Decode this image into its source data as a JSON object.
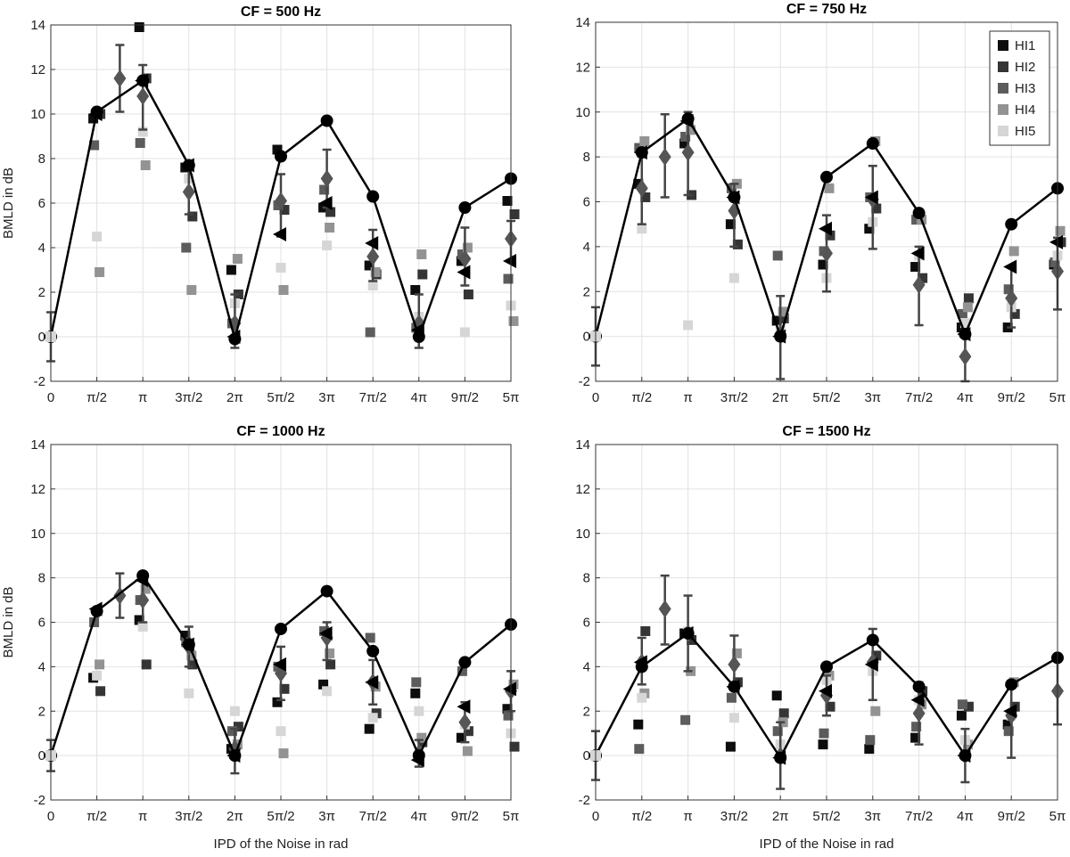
{
  "chart_data": {
    "type": "scatter",
    "xlabel": "IPD of the Noise in rad",
    "ylabel": "BMLD in dB",
    "ylim": [
      -2,
      14
    ],
    "yticks": [
      "-2",
      "0",
      "2",
      "4",
      "6",
      "8",
      "10",
      "12",
      "14"
    ],
    "x_tick_labels": [
      "0",
      "π/2",
      "π",
      "3π/2",
      "2π",
      "5π/2",
      "3π",
      "7π/2",
      "4π",
      "9π/2",
      "5π"
    ],
    "grid": true,
    "legend": {
      "location": "top-right of CF = 750 Hz panel",
      "entries": [
        {
          "name": "HI1",
          "color": "#0d0d0d"
        },
        {
          "name": "HI2",
          "color": "#353535"
        },
        {
          "name": "HI3",
          "color": "#5c5c5c"
        },
        {
          "name": "HI4",
          "color": "#939393"
        },
        {
          "name": "HI5",
          "color": "#d6d6d6"
        }
      ]
    },
    "panels": [
      {
        "title": "CF = 500 Hz",
        "line": [
          0,
          10.1,
          11.5,
          7.7,
          -0.1,
          8.1,
          9.7,
          6.3,
          0,
          5.8,
          7.1
        ],
        "subjects": [
          [
            null,
            9.8,
            13.9,
            7.6,
            3.0,
            8.4,
            5.8,
            3.2,
            2.1,
            3.4,
            6.1
          ],
          [
            null,
            10.0,
            11.6,
            5.4,
            1.9,
            5.7,
            5.6,
            2.8,
            2.8,
            1.9,
            5.5
          ],
          [
            null,
            8.6,
            8.7,
            4.0,
            0.6,
            5.9,
            6.6,
            0.2,
            0.4,
            3.7,
            2.6
          ],
          [
            null,
            2.9,
            7.7,
            2.1,
            3.5,
            2.1,
            4.9,
            2.9,
            3.7,
            4.0,
            0.7
          ],
          [
            null,
            4.5,
            9.2,
            7.1,
            1.5,
            3.1,
            4.1,
            2.3,
            0.9,
            0.2,
            1.4
          ]
        ],
        "triangles": [
          null,
          10.0,
          11.5,
          7.7,
          0,
          4.6,
          6.0,
          4.2,
          0.3,
          2.9,
          3.4
        ],
        "diamonds": [
          {
            "x": 1.5,
            "y": 11.6,
            "lo": 10.1,
            "hi": 13.1
          },
          {
            "x": 2,
            "y": 10.8,
            "lo": 9.3,
            "hi": 12.2
          },
          {
            "x": 3,
            "y": 6.5,
            "lo": 5.5,
            "hi": 7.6
          },
          {
            "x": 4,
            "y": 0.6,
            "lo": -0.5,
            "hi": 1.9
          },
          {
            "x": 5,
            "y": 6.1,
            "lo": 4.5,
            "hi": 7.3
          },
          {
            "x": 6,
            "y": 7.1,
            "lo": 5.8,
            "hi": 8.4
          },
          {
            "x": 7,
            "y": 3.6,
            "lo": 2.5,
            "hi": 4.8
          },
          {
            "x": 8,
            "y": 0.6,
            "lo": -0.5,
            "hi": 1.9
          },
          {
            "x": 9,
            "y": 3.5,
            "lo": 2.3,
            "hi": 4.9
          },
          {
            "x": 10,
            "y": 4.4,
            "lo": 3.4,
            "hi": 5.2
          }
        ],
        "origin_bar": [
          -1.1,
          1.1
        ]
      },
      {
        "title": "CF = 750 Hz",
        "line": [
          0,
          8.2,
          9.7,
          6.2,
          0,
          7.1,
          8.6,
          5.5,
          0.1,
          5.0,
          6.6
        ],
        "subjects": [
          [
            null,
            6.8,
            8.6,
            5.0,
            0.7,
            3.2,
            4.8,
            3.1,
            0.4,
            0.4,
            3.2
          ],
          [
            null,
            6.2,
            6.3,
            4.1,
            0.8,
            4.5,
            5.7,
            2.6,
            1.7,
            1.0,
            4.2
          ],
          [
            null,
            8.4,
            8.9,
            6.6,
            3.6,
            3.8,
            6.2,
            5.2,
            1.0,
            2.1,
            3.3
          ],
          [
            null,
            8.7,
            9.2,
            6.8,
            1.1,
            6.6,
            8.7,
            5.2,
            1.3,
            3.8,
            4.7
          ],
          [
            null,
            4.8,
            0.5,
            2.6,
            0.3,
            2.6,
            5.1,
            3.6,
            0.6,
            1.3,
            3.6
          ]
        ],
        "triangles": [
          null,
          8.2,
          9.6,
          6.2,
          0,
          4.8,
          6.2,
          3.7,
          0.1,
          3.1,
          4.2
        ],
        "diamonds": [
          {
            "x": 1,
            "y": 6.6,
            "lo": 5.0,
            "hi": 8.0
          },
          {
            "x": 1.5,
            "y": 8.0,
            "lo": 6.2,
            "hi": 9.9
          },
          {
            "x": 2,
            "y": 8.2,
            "lo": 6.3,
            "hi": 10.0
          },
          {
            "x": 3,
            "y": 5.6,
            "lo": 4.0,
            "hi": 6.8
          },
          {
            "x": 4,
            "y": 0.1,
            "lo": -1.9,
            "hi": 1.8
          },
          {
            "x": 5,
            "y": 3.7,
            "lo": 2.0,
            "hi": 5.4
          },
          {
            "x": 6,
            "y": 6.1,
            "lo": 3.9,
            "hi": 7.6
          },
          {
            "x": 7,
            "y": 2.3,
            "lo": 0.5,
            "hi": 4.0
          },
          {
            "x": 8,
            "y": -0.9,
            "lo": -2.0,
            "hi": 0.3
          },
          {
            "x": 9,
            "y": 1.7,
            "lo": 0.4,
            "hi": 3.1
          },
          {
            "x": 10,
            "y": 2.9,
            "lo": 1.2,
            "hi": 4.4
          }
        ],
        "origin_bar": [
          -1.3,
          1.3
        ]
      },
      {
        "title": "CF = 1000 Hz",
        "line": [
          0,
          6.5,
          8.1,
          5.0,
          0,
          5.7,
          7.4,
          4.7,
          0,
          4.2,
          5.9
        ],
        "subjects": [
          [
            null,
            3.5,
            6.1,
            5.4,
            0.3,
            2.4,
            3.2,
            1.2,
            2.8,
            0.8,
            2.1
          ],
          [
            null,
            2.9,
            4.1,
            4.1,
            1.3,
            3.0,
            4.1,
            1.9,
            0.6,
            1.1,
            0.4
          ],
          [
            null,
            6.0,
            7.0,
            5.1,
            1.1,
            4.0,
            5.6,
            5.3,
            3.3,
            3.8,
            1.8
          ],
          [
            null,
            4.1,
            7.5,
            4.5,
            0.5,
            0.1,
            4.6,
            3.1,
            0.8,
            0.2,
            3.2
          ],
          [
            null,
            3.6,
            5.8,
            2.8,
            2.0,
            1.1,
            2.9,
            1.7,
            2.0,
            1.4,
            1.0
          ]
        ],
        "triangles": [
          null,
          6.6,
          7.9,
          5.0,
          0,
          4.1,
          5.5,
          3.3,
          -0.2,
          2.2,
          3.0
        ],
        "diamonds": [
          {
            "x": 1.5,
            "y": 7.2,
            "lo": 6.2,
            "hi": 8.2
          },
          {
            "x": 2,
            "y": 7.0,
            "lo": 6.0,
            "hi": 8.0
          },
          {
            "x": 3,
            "y": 4.9,
            "lo": 4.0,
            "hi": 5.8
          },
          {
            "x": 4,
            "y": 0.3,
            "lo": -0.8,
            "hi": 1.2
          },
          {
            "x": 5,
            "y": 3.7,
            "lo": 2.5,
            "hi": 4.9
          },
          {
            "x": 6,
            "y": 5.3,
            "lo": 4.3,
            "hi": 6.0
          },
          {
            "x": 7,
            "y": 3.3,
            "lo": 2.3,
            "hi": 4.3
          },
          {
            "x": 8,
            "y": 0.1,
            "lo": -0.5,
            "hi": 0.7
          },
          {
            "x": 9,
            "y": 1.5,
            "lo": 0.6,
            "hi": 2.4
          },
          {
            "x": 10,
            "y": 2.9,
            "lo": 2.0,
            "hi": 3.8
          }
        ],
        "origin_bar": [
          -0.7,
          0.7
        ]
      },
      {
        "title": "CF = 1500 Hz",
        "line": [
          0,
          4.0,
          5.5,
          3.1,
          -0.1,
          4.0,
          5.2,
          3.1,
          0,
          3.2,
          4.4
        ],
        "subjects": [
          [
            null,
            1.4,
            5.5,
            0.4,
            2.7,
            0.5,
            0.3,
            0.8,
            1.8,
            1.4,
            null
          ],
          [
            null,
            5.6,
            5.2,
            3.3,
            1.9,
            2.2,
            4.5,
            2.9,
            2.2,
            2.2,
            null
          ],
          [
            null,
            0.3,
            1.6,
            2.6,
            1.1,
            1.0,
            0.7,
            1.3,
            2.3,
            1.1,
            null
          ],
          [
            null,
            2.8,
            3.8,
            4.6,
            1.5,
            3.6,
            2.0,
            2.3,
            0.5,
            3.3,
            null
          ],
          [
            null,
            2.6,
            5.6,
            1.7,
            0.5,
            3.4,
            3.8,
            2.5,
            0.7,
            1.8,
            null
          ]
        ],
        "triangles": [
          null,
          4.2,
          5.5,
          3.1,
          -0.1,
          2.9,
          4.1,
          2.5,
          0,
          2.0,
          null
        ],
        "diamonds": [
          {
            "x": 1,
            "y": 4.2,
            "lo": 3.2,
            "hi": 5.3
          },
          {
            "x": 1.5,
            "y": 6.6,
            "lo": 5.0,
            "hi": 8.1
          },
          {
            "x": 2,
            "y": 5.5,
            "lo": 3.8,
            "hi": 7.2
          },
          {
            "x": 3,
            "y": 4.1,
            "lo": 3.0,
            "hi": 5.4
          },
          {
            "x": 4,
            "y": 0.0,
            "lo": -1.5,
            "hi": 1.5
          },
          {
            "x": 5,
            "y": 2.7,
            "lo": 1.8,
            "hi": 3.6
          },
          {
            "x": 6,
            "y": 4.2,
            "lo": 2.5,
            "hi": 5.7
          },
          {
            "x": 7,
            "y": 1.9,
            "lo": 0.5,
            "hi": 3.3
          },
          {
            "x": 8,
            "y": 0.0,
            "lo": -1.2,
            "hi": 1.2
          },
          {
            "x": 9,
            "y": 1.8,
            "lo": -0.1,
            "hi": 3.3
          },
          {
            "x": 10,
            "y": 2.9,
            "lo": 1.4,
            "hi": 4.3
          }
        ],
        "origin_bar": [
          -1.1,
          1.1
        ]
      }
    ]
  }
}
